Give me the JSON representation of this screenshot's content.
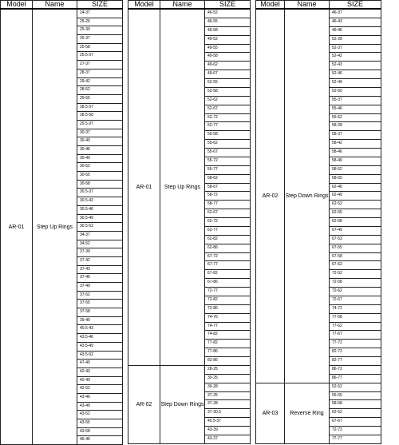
{
  "tables": [
    {
      "header": [
        "Model",
        "Name",
        "SIZE"
      ],
      "groups": [
        {
          "model": "AR-01",
          "name": "Step Up Rings",
          "sizes": [
            "24-37",
            "25-26",
            "25-30",
            "25-37",
            "25-58",
            "25.5-37",
            "27-37",
            "28-37",
            "29-42",
            "28-52",
            "29-55",
            "28.5-37",
            "28.5-58",
            "29.5-37",
            "30-37",
            "30-40",
            "30-46",
            "30-49",
            "30-52",
            "30-55",
            "30-58",
            "30.5-37",
            "30.5-43",
            "30.5-46",
            "30.5-49",
            "30.5-52",
            "34-37",
            "34-52",
            "37-39",
            "37-42",
            "37-43",
            "37-46",
            "37-49",
            "37-52",
            "37-55",
            "37-58",
            "39-40",
            "40.5-43",
            "43.5-46",
            "43.5-49",
            "43.5-52",
            "47-40",
            "42-43",
            "42-49",
            "42-52",
            "43-46",
            "43-49",
            "43-52",
            "43-55",
            "43-58",
            "46-46"
          ]
        }
      ]
    },
    {
      "header": [
        "Model",
        "Name",
        "SIZE"
      ],
      "groups": [
        {
          "model": "AR-01",
          "name": "Step Up Rings",
          "sizes": [
            "46-52",
            "46-55",
            "46-58",
            "49-52",
            "49-55",
            "49-58",
            "49-62",
            "49-67",
            "52-55",
            "52-58",
            "52-62",
            "52-67",
            "52-72",
            "52-77",
            "55-58",
            "55-62",
            "55-67",
            "55-72",
            "55-77",
            "58-62",
            "58-67",
            "58-72",
            "58-77",
            "62-67",
            "62-72",
            "62-77",
            "62-82",
            "62-86",
            "67-72",
            "67-77",
            "67-82",
            "67-86",
            "72-77",
            "72-82",
            "72-86",
            "74-76",
            "74-77",
            "74-82",
            "77-82",
            "77-86",
            "82-86"
          ]
        },
        {
          "model": "AR-02",
          "name": "Step Down Rings",
          "sizes": [
            "28-25",
            "30-25",
            "30-28",
            "37-25",
            "37-28",
            "37-30.5",
            "40.5-37",
            "43-39",
            "43-37"
          ]
        }
      ]
    },
    {
      "header": [
        "Model",
        "Name",
        "SIZE"
      ],
      "groups": [
        {
          "model": "AR-02",
          "name": "Step Down Rings",
          "sizes": [
            "46-37",
            "46-43",
            "49-46",
            "52-28",
            "52-37",
            "52-42",
            "52-43",
            "52-46",
            "52-49",
            "52-50",
            "55-37",
            "55-46",
            "55-52",
            "58-28",
            "58-37",
            "58-42",
            "58-46",
            "58-49",
            "58-52",
            "58-55",
            "62-46",
            "62-49",
            "62-52",
            "62-55",
            "62-58",
            "67-49",
            "67-53",
            "67-55",
            "67-58",
            "67-62",
            "72-52",
            "72-58",
            "72-62",
            "72-67",
            "74-72",
            "77-58",
            "77-62",
            "77-67",
            "77-72",
            "82-72",
            "82-77",
            "86-72",
            "86-77"
          ]
        },
        {
          "model": "AR-03",
          "name": "Reverse Ring",
          "sizes": [
            "52-52",
            "55-55",
            "58-58",
            "62-62",
            "67-67",
            "72-72",
            "77-77"
          ]
        }
      ]
    }
  ]
}
